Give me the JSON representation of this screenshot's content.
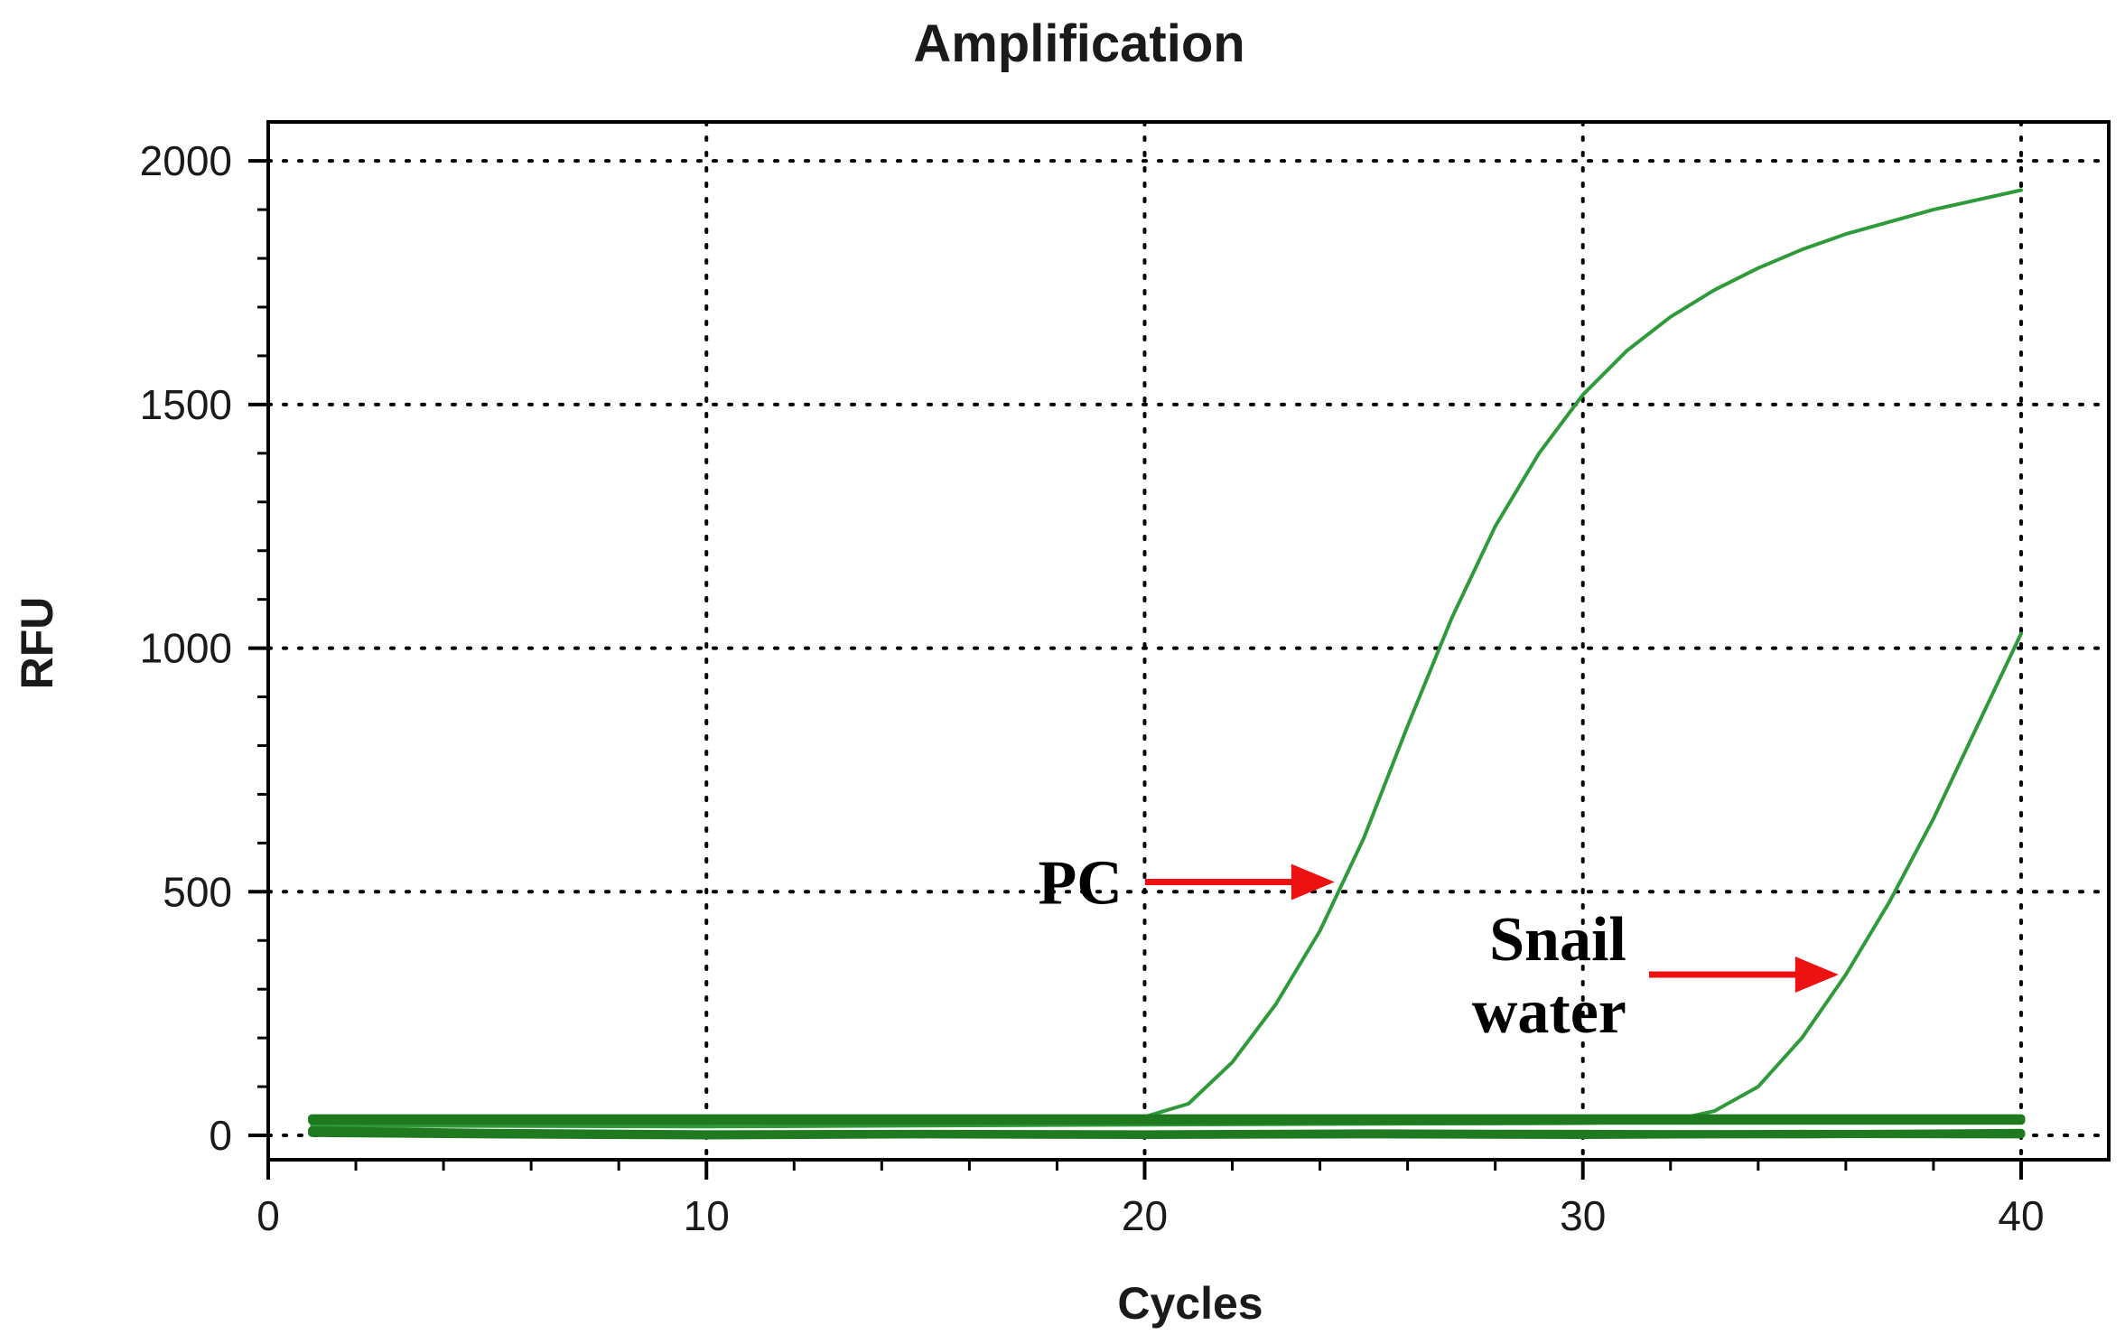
{
  "chart_data": {
    "type": "line",
    "title": "Amplification",
    "xlabel": "Cycles",
    "ylabel": "RFU",
    "xlim": [
      0,
      42
    ],
    "ylim": [
      -50,
      2080
    ],
    "x_ticks": [
      0,
      10,
      20,
      30,
      40
    ],
    "y_ticks": [
      0,
      500,
      1000,
      1500,
      2000
    ],
    "grid": true,
    "series_color": "#2e9a3a",
    "baseline_color": "#1f7a1f",
    "annotation_color": "#ee1111",
    "series": [
      {
        "x": [
          1,
          5,
          10,
          15,
          19,
          20,
          21,
          22,
          23,
          24,
          25,
          26,
          27,
          28,
          29,
          30,
          31,
          32,
          33,
          34,
          35,
          36,
          37,
          38,
          39,
          40
        ],
        "values": [
          20,
          22,
          25,
          28,
          32,
          38,
          65,
          150,
          270,
          420,
          610,
          840,
          1060,
          1250,
          1400,
          1520,
          1610,
          1680,
          1735,
          1780,
          1818,
          1850,
          1875,
          1900,
          1920,
          1940
        ]
      },
      {
        "x": [
          1,
          10,
          20,
          30,
          32,
          33,
          34,
          35,
          36,
          37,
          38,
          39,
          40
        ],
        "values": [
          20,
          18,
          22,
          25,
          30,
          50,
          100,
          200,
          330,
          480,
          650,
          840,
          1030
        ]
      },
      {
        "x": [
          1,
          10,
          20,
          30,
          40
        ],
        "values": [
          35,
          35,
          35,
          35,
          35
        ]
      },
      {
        "x": [
          1,
          10,
          20,
          30,
          40
        ],
        "values": [
          30,
          30,
          30,
          30,
          30
        ]
      },
      {
        "x": [
          1,
          5,
          10,
          15,
          20,
          25,
          30,
          35,
          40
        ],
        "values": [
          10,
          5,
          2,
          3,
          2,
          4,
          3,
          2,
          5
        ]
      },
      {
        "x": [
          1,
          5,
          10,
          15,
          20,
          25,
          30,
          35,
          40
        ],
        "values": [
          5,
          2,
          0,
          2,
          1,
          2,
          1,
          3,
          2
        ]
      }
    ],
    "annotations": [
      {
        "lines": [
          "PC"
        ],
        "point": [
          24.5,
          520
        ]
      },
      {
        "lines": [
          "Snail",
          "water"
        ],
        "point": [
          36,
          330
        ]
      }
    ]
  }
}
